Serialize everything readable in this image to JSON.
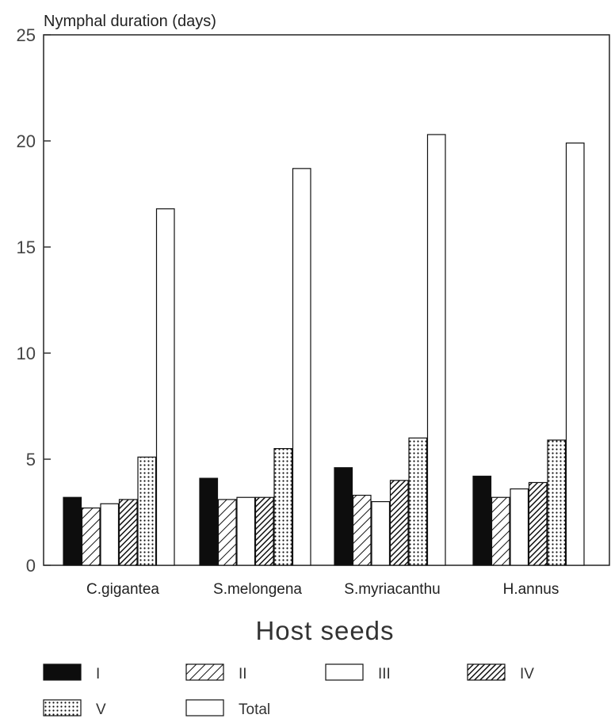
{
  "chart_data": {
    "type": "bar",
    "title": "Nymphal duration (days)",
    "xlabel": "Host seeds",
    "ylabel": "Nymphal duration (days)",
    "ylim": [
      0,
      25
    ],
    "yticks": [
      "0",
      "5",
      "10",
      "15",
      "20",
      "25"
    ],
    "grid": false,
    "legend_position": "bottom",
    "categories": [
      "C.gigantea",
      "S.melongena",
      "S.myriacanthu",
      "H.annus"
    ],
    "series": [
      {
        "name": "I",
        "values": [
          3.2,
          4.1,
          4.6,
          4.2
        ],
        "pattern": "solid"
      },
      {
        "name": "II",
        "values": [
          2.7,
          3.1,
          3.3,
          3.2
        ],
        "pattern": "hatch-light"
      },
      {
        "name": "III",
        "values": [
          2.9,
          3.2,
          3.0,
          3.6
        ],
        "pattern": "open"
      },
      {
        "name": "IV",
        "values": [
          3.1,
          3.2,
          4.0,
          3.9
        ],
        "pattern": "hatch-dense"
      },
      {
        "name": "V",
        "values": [
          5.1,
          5.5,
          6.0,
          5.9
        ],
        "pattern": "dots"
      },
      {
        "name": "Total",
        "values": [
          16.8,
          18.7,
          20.3,
          19.9
        ],
        "pattern": "open"
      }
    ]
  }
}
